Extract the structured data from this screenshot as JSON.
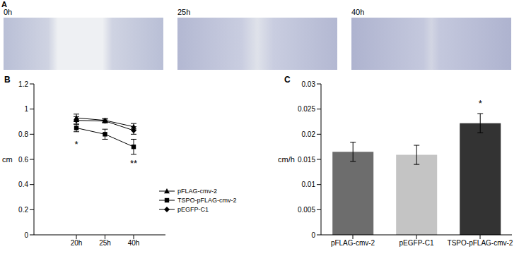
{
  "chart_data": [
    {
      "type": "image",
      "title": "A",
      "categories": [
        "0h",
        "25h",
        "40h"
      ]
    },
    {
      "type": "line",
      "title": "B",
      "y_label": "cm",
      "categories": [
        "20h",
        "25h",
        "40h"
      ],
      "ylim": [
        0,
        1.2
      ],
      "yticks": [
        0,
        0.2,
        0.4,
        0.6,
        0.8,
        1,
        1.2
      ],
      "grid": false,
      "legend": "lower right",
      "series": [
        {
          "name": "pFLAG-cmv-2",
          "color": "#000000",
          "marker": "triangle",
          "values": [
            0.93,
            0.91,
            0.86
          ],
          "errors": [
            0.03,
            0.015,
            0.025
          ]
        },
        {
          "name": "TSPO-pFLAG-cmv-2",
          "color": "#000000",
          "marker": "square",
          "values": [
            0.85,
            0.8,
            0.7
          ],
          "errors": [
            0.03,
            0.04,
            0.06
          ]
        },
        {
          "name": "pEGFP-C1",
          "color": "#000000",
          "marker": "diamond",
          "values": [
            0.91,
            0.905,
            0.83
          ],
          "errors": [
            0.03,
            0.015,
            0.03
          ]
        }
      ],
      "annotations": [
        {
          "text": "*",
          "category": "20h",
          "series": "TSPO-pFLAG-cmv-2"
        },
        {
          "text": "**",
          "category": "40h",
          "series": "TSPO-pFLAG-cmv-2"
        }
      ]
    },
    {
      "type": "bar",
      "title": "C",
      "y_label": "cm/h",
      "categories": [
        "pFLAG-cmv-2",
        "pEGFP-C1",
        "TSPO-pFLAG-cmv-2"
      ],
      "values": [
        0.0165,
        0.0159,
        0.0222
      ],
      "errors": [
        0.0019,
        0.0019,
        0.0019
      ],
      "colors": [
        "#6d6d6d",
        "#c4c4c4",
        "#333333"
      ],
      "ylim": [
        0,
        0.03
      ],
      "yticks": [
        0,
        0.005,
        0.01,
        0.015,
        0.02,
        0.025,
        0.03
      ],
      "grid": false,
      "annotations": [
        {
          "text": "*",
          "category": "TSPO-pFLAG-cmv-2"
        }
      ]
    }
  ]
}
